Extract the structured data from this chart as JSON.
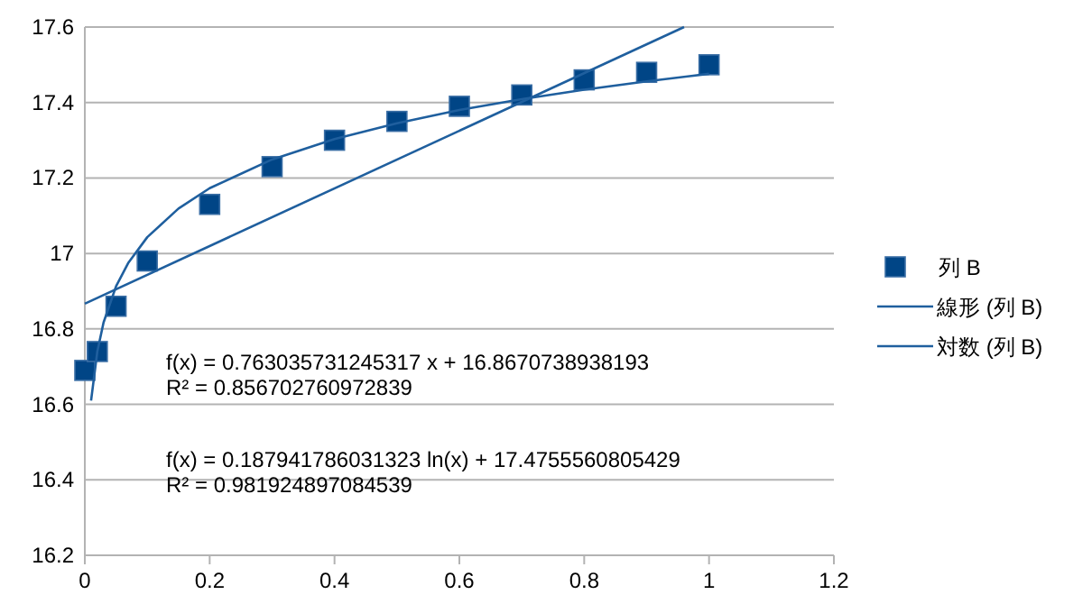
{
  "chart_data": {
    "type": "scatter",
    "xlim": [
      0,
      1.2
    ],
    "xticks": [
      0,
      0.2,
      0.4,
      0.6,
      0.8,
      1,
      1.2
    ],
    "ylim": [
      16.2,
      17.6
    ],
    "yticks": [
      16.2,
      16.4,
      16.6,
      16.8,
      17,
      17.2,
      17.4,
      17.6
    ],
    "grid": "y",
    "legend": "right",
    "marker": "square",
    "series": [
      {
        "name": "列 B",
        "color": "#004586",
        "x": [
          0,
          0.02,
          0.05,
          0.1,
          0.2,
          0.3,
          0.4,
          0.5,
          0.6,
          0.7,
          0.8,
          0.9,
          1
        ],
        "values": [
          16.69,
          16.74,
          16.86,
          16.98,
          17.13,
          17.23,
          17.3,
          17.35,
          17.39,
          17.42,
          17.46,
          17.48,
          17.5
        ]
      },
      {
        "name": "線形 (列 B)",
        "type": "line",
        "marker": "none",
        "color": "#1f5f9e",
        "x": [
          0,
          0.96
        ],
        "values": [
          16.867,
          17.6
        ]
      },
      {
        "name": "対数 (列 B)",
        "type": "line",
        "marker": "none",
        "color": "#1f5f9e",
        "x": [
          0.01,
          0.02,
          0.03,
          0.05,
          0.07,
          0.1,
          0.15,
          0.2,
          0.3,
          0.4,
          0.5,
          0.6,
          0.7,
          0.8,
          0.9,
          1
        ],
        "values": [
          16.61,
          16.74,
          16.817,
          16.913,
          16.976,
          17.043,
          17.119,
          17.173,
          17.249,
          17.303,
          17.345,
          17.38,
          17.409,
          17.434,
          17.456,
          17.476
        ]
      }
    ],
    "annotations": [
      "f(x) = 0.763035731245317 x + 16.8670738938193\nR² = 0.856702760972839",
      "f(x) = 0.187941786031323 ln(x) + 17.4755560805429\nR² = 0.981924897084539"
    ]
  }
}
